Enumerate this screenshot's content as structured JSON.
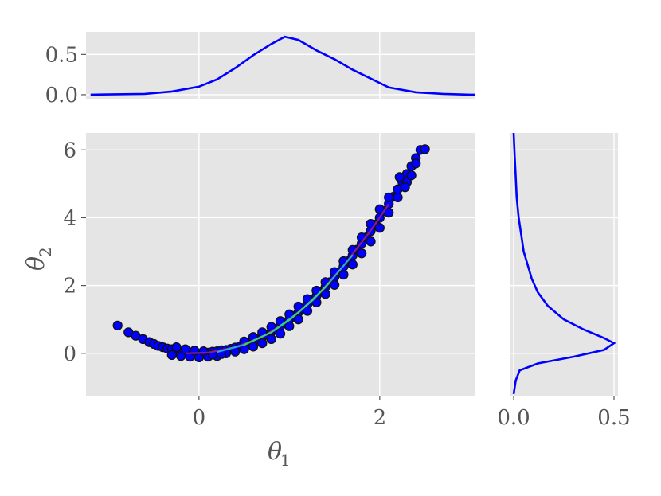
{
  "chart_data": [
    {
      "type": "line",
      "panel": "top-marginal",
      "x": [
        -1.2,
        -0.6,
        -0.3,
        0,
        0.2,
        0.4,
        0.6,
        0.8,
        0.95,
        1.1,
        1.3,
        1.5,
        1.7,
        1.9,
        2.1,
        2.4,
        2.7,
        3.0,
        3.05
      ],
      "y": [
        0,
        0.01,
        0.04,
        0.1,
        0.19,
        0.33,
        0.49,
        0.63,
        0.72,
        0.68,
        0.55,
        0.44,
        0.31,
        0.2,
        0.09,
        0.03,
        0.01,
        0,
        0
      ],
      "xlim": [
        -1.25,
        3.05
      ],
      "ylim": [
        -0.05,
        0.78
      ],
      "yticks": [
        0.0,
        0.5
      ],
      "ytick_labels": [
        "0.0",
        "0.5"
      ],
      "xticks": [
        0,
        2
      ],
      "grid": true,
      "color": "#0000ff"
    },
    {
      "type": "scatter",
      "panel": "joint",
      "xlim": [
        -1.25,
        3.05
      ],
      "ylim": [
        -1.25,
        6.5
      ],
      "xticks": [
        0,
        2
      ],
      "xtick_labels": [
        "0",
        "2"
      ],
      "yticks": [
        0,
        2,
        4,
        6
      ],
      "ytick_labels": [
        "0",
        "2",
        "4",
        "6"
      ],
      "xlabel_main": "θ",
      "xlabel_sub": "1",
      "ylabel_main": "θ",
      "ylabel_sub": "2",
      "grid": true,
      "point_color": "#0000ff",
      "edge_color": "#111111",
      "points": [
        [
          -0.9,
          0.82
        ],
        [
          -0.78,
          0.62
        ],
        [
          -0.7,
          0.52
        ],
        [
          -0.62,
          0.42
        ],
        [
          -0.55,
          0.33
        ],
        [
          -0.5,
          0.28
        ],
        [
          -0.45,
          0.22
        ],
        [
          -0.4,
          0.18
        ],
        [
          -0.35,
          0.14
        ],
        [
          -0.3,
          0.12
        ],
        [
          -0.25,
          0.08
        ],
        [
          -0.2,
          0.05
        ],
        [
          -0.15,
          0.04
        ],
        [
          -0.1,
          0.02
        ],
        [
          -0.05,
          0.0
        ],
        [
          0.0,
          -0.02
        ],
        [
          0.05,
          0.01
        ],
        [
          0.1,
          0.02
        ],
        [
          -0.3,
          -0.05
        ],
        [
          -0.2,
          -0.08
        ],
        [
          -0.1,
          -0.1
        ],
        [
          0.0,
          -0.12
        ],
        [
          0.1,
          -0.1
        ],
        [
          0.2,
          -0.08
        ],
        [
          0.15,
          0.05
        ],
        [
          0.2,
          0.06
        ],
        [
          0.25,
          0.09
        ],
        [
          0.3,
          0.1
        ],
        [
          0.35,
          0.13
        ],
        [
          0.4,
          0.17
        ],
        [
          0.45,
          0.2
        ],
        [
          0.5,
          0.25
        ],
        [
          0.55,
          0.3
        ],
        [
          0.6,
          0.36
        ],
        [
          0.65,
          0.42
        ],
        [
          0.7,
          0.48
        ],
        [
          0.75,
          0.55
        ],
        [
          0.8,
          0.63
        ],
        [
          0.85,
          0.72
        ],
        [
          0.9,
          0.8
        ],
        [
          0.95,
          0.9
        ],
        [
          1.0,
          1.0
        ],
        [
          1.05,
          1.1
        ],
        [
          1.1,
          1.21
        ],
        [
          1.15,
          1.32
        ],
        [
          1.2,
          1.44
        ],
        [
          1.25,
          1.56
        ],
        [
          1.3,
          1.69
        ],
        [
          1.35,
          1.82
        ],
        [
          1.4,
          1.96
        ],
        [
          1.45,
          2.1
        ],
        [
          1.5,
          2.25
        ],
        [
          1.55,
          2.4
        ],
        [
          1.6,
          2.56
        ],
        [
          1.65,
          2.72
        ],
        [
          1.7,
          2.89
        ],
        [
          1.75,
          3.06
        ],
        [
          1.8,
          3.24
        ],
        [
          1.85,
          3.42
        ],
        [
          1.9,
          3.61
        ],
        [
          1.95,
          3.8
        ],
        [
          2.0,
          4.0
        ],
        [
          2.05,
          4.2
        ],
        [
          2.1,
          4.41
        ],
        [
          2.15,
          4.62
        ],
        [
          2.2,
          4.84
        ],
        [
          2.25,
          5.06
        ],
        [
          2.3,
          5.29
        ],
        [
          2.35,
          5.52
        ],
        [
          2.4,
          5.76
        ],
        [
          2.45,
          6.0
        ],
        [
          2.5,
          6.02
        ],
        [
          0.3,
          0.0
        ],
        [
          0.4,
          0.05
        ],
        [
          0.5,
          0.12
        ],
        [
          0.6,
          0.2
        ],
        [
          0.7,
          0.3
        ],
        [
          0.8,
          0.42
        ],
        [
          0.9,
          0.58
        ],
        [
          1.0,
          0.8
        ],
        [
          1.1,
          1.0
        ],
        [
          1.2,
          1.25
        ],
        [
          1.3,
          1.5
        ],
        [
          1.4,
          1.75
        ],
        [
          1.5,
          2.02
        ],
        [
          1.6,
          2.32
        ],
        [
          1.7,
          2.62
        ],
        [
          1.8,
          2.95
        ],
        [
          1.9,
          3.3
        ],
        [
          2.0,
          3.7
        ],
        [
          2.1,
          4.15
        ],
        [
          2.2,
          4.6
        ],
        [
          2.3,
          5.05
        ],
        [
          2.35,
          5.25
        ],
        [
          2.28,
          4.9
        ],
        [
          2.4,
          5.6
        ],
        [
          0.5,
          0.35
        ],
        [
          0.6,
          0.48
        ],
        [
          0.7,
          0.62
        ],
        [
          0.8,
          0.78
        ],
        [
          0.9,
          0.95
        ],
        [
          1.0,
          1.15
        ],
        [
          1.1,
          1.38
        ],
        [
          1.2,
          1.6
        ],
        [
          1.3,
          1.85
        ],
        [
          1.4,
          2.1
        ],
        [
          1.5,
          2.4
        ],
        [
          1.6,
          2.72
        ],
        [
          1.7,
          3.05
        ],
        [
          1.8,
          3.42
        ],
        [
          1.9,
          3.82
        ],
        [
          2.0,
          4.25
        ],
        [
          2.1,
          4.6
        ],
        [
          2.22,
          5.2
        ],
        [
          -0.15,
          0.12
        ],
        [
          -0.05,
          0.08
        ],
        [
          0.05,
          0.06
        ],
        [
          -0.25,
          0.18
        ],
        [
          0.15,
          -0.04
        ],
        [
          0.25,
          -0.02
        ]
      ],
      "contour_lines": [
        {
          "color": "#8a1a8a",
          "x": [
            -0.15,
            0.1,
            0.4,
            0.7,
            1.0,
            1.3,
            1.6,
            1.9,
            2.1
          ],
          "y": [
            0.0,
            0.02,
            0.18,
            0.48,
            0.98,
            1.68,
            2.58,
            3.62,
            4.4
          ]
        },
        {
          "color": "#2ca8d8",
          "x": [
            0.2,
            0.5,
            0.8,
            1.1,
            1.4,
            1.7
          ],
          "y": [
            0.04,
            0.25,
            0.62,
            1.2,
            1.95,
            2.9
          ]
        },
        {
          "color": "#3ecf6e",
          "x": [
            0.5,
            0.8,
            1.0,
            1.25,
            1.45
          ],
          "y": [
            0.25,
            0.62,
            0.98,
            1.55,
            2.1
          ]
        }
      ]
    },
    {
      "type": "line",
      "panel": "right-marginal",
      "orientation": "horizontal",
      "y": [
        -1.2,
        -0.8,
        -0.5,
        -0.3,
        -0.1,
        0.1,
        0.3,
        0.45,
        0.7,
        1.0,
        1.4,
        1.8,
        2.2,
        2.6,
        3.0,
        3.4,
        4.0,
        4.6,
        5.2,
        5.8,
        6.5
      ],
      "x": [
        0.0,
        0.01,
        0.03,
        0.12,
        0.3,
        0.45,
        0.5,
        0.45,
        0.35,
        0.25,
        0.17,
        0.12,
        0.09,
        0.07,
        0.05,
        0.04,
        0.025,
        0.015,
        0.01,
        0.005,
        0.0
      ],
      "xlim": [
        -0.02,
        0.52
      ],
      "ylim": [
        -1.25,
        6.5
      ],
      "xticks": [
        0.0,
        0.5
      ],
      "xtick_labels": [
        "0.0",
        "0.5"
      ],
      "yticks": [
        0,
        2,
        4,
        6
      ],
      "grid": true,
      "color": "#0000ff"
    }
  ]
}
